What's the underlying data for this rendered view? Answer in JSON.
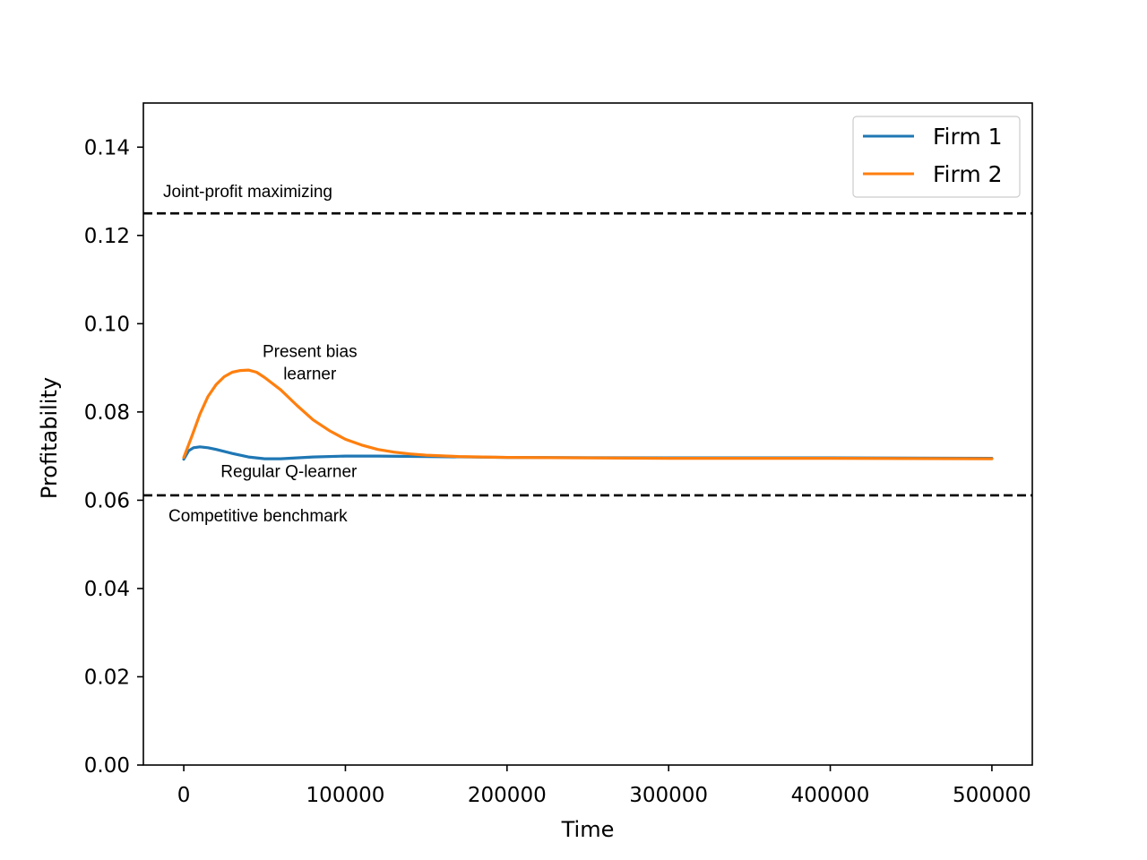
{
  "chart_data": {
    "type": "line",
    "title": "",
    "xlabel": "Time",
    "ylabel": "Profitability",
    "xlim": [
      -25000,
      525000
    ],
    "ylim": [
      0,
      0.15
    ],
    "x_ticks": [
      0,
      100000,
      200000,
      300000,
      400000,
      500000
    ],
    "x_tick_labels": [
      "0",
      "100000",
      "200000",
      "300000",
      "400000",
      "500000"
    ],
    "y_ticks": [
      0,
      0.02,
      0.04,
      0.06,
      0.08,
      0.1,
      0.12,
      0.14
    ],
    "y_tick_labels": [
      "0.00",
      "0.02",
      "0.04",
      "0.06",
      "0.08",
      "0.10",
      "0.12",
      "0.14"
    ],
    "grid": false,
    "legend": {
      "position": "top-right",
      "entries": [
        "Firm 1",
        "Firm 2"
      ]
    },
    "series": [
      {
        "name": "Firm 1",
        "color": "#1f77b4",
        "x": [
          0,
          3000,
          6000,
          10000,
          15000,
          20000,
          30000,
          40000,
          50000,
          60000,
          70000,
          80000,
          100000,
          120000,
          150000,
          200000,
          300000,
          400000,
          500000
        ],
        "y": [
          0.0693,
          0.0712,
          0.0719,
          0.0721,
          0.0719,
          0.0715,
          0.0706,
          0.0698,
          0.0694,
          0.0694,
          0.0696,
          0.0698,
          0.07,
          0.07,
          0.0699,
          0.0697,
          0.0696,
          0.0696,
          0.0695
        ]
      },
      {
        "name": "Firm 2",
        "color": "#ff7f0e",
        "x": [
          0,
          5000,
          10000,
          15000,
          20000,
          25000,
          30000,
          35000,
          40000,
          45000,
          50000,
          60000,
          70000,
          80000,
          90000,
          100000,
          110000,
          120000,
          130000,
          140000,
          150000,
          170000,
          200000,
          250000,
          300000,
          400000,
          500000
        ],
        "y": [
          0.0697,
          0.0745,
          0.0795,
          0.0835,
          0.0862,
          0.088,
          0.089,
          0.0894,
          0.0895,
          0.089,
          0.0878,
          0.085,
          0.0815,
          0.0782,
          0.0758,
          0.0738,
          0.0725,
          0.0715,
          0.0709,
          0.0705,
          0.0702,
          0.0699,
          0.0697,
          0.0696,
          0.0695,
          0.0695,
          0.0694
        ]
      }
    ],
    "reference_lines": [
      {
        "label": "Joint-profit maximizing",
        "y": 0.125,
        "style": "dashed",
        "color": "#000000"
      },
      {
        "label": "Competitive benchmark",
        "y": 0.0611,
        "style": "dashed",
        "color": "#000000"
      }
    ],
    "annotations": [
      {
        "text": [
          "Present bias",
          "learner"
        ],
        "x": 78000,
        "y": 0.0925
      },
      {
        "text": [
          "Regular Q-learner"
        ],
        "x": 65000,
        "y": 0.0653
      }
    ]
  }
}
